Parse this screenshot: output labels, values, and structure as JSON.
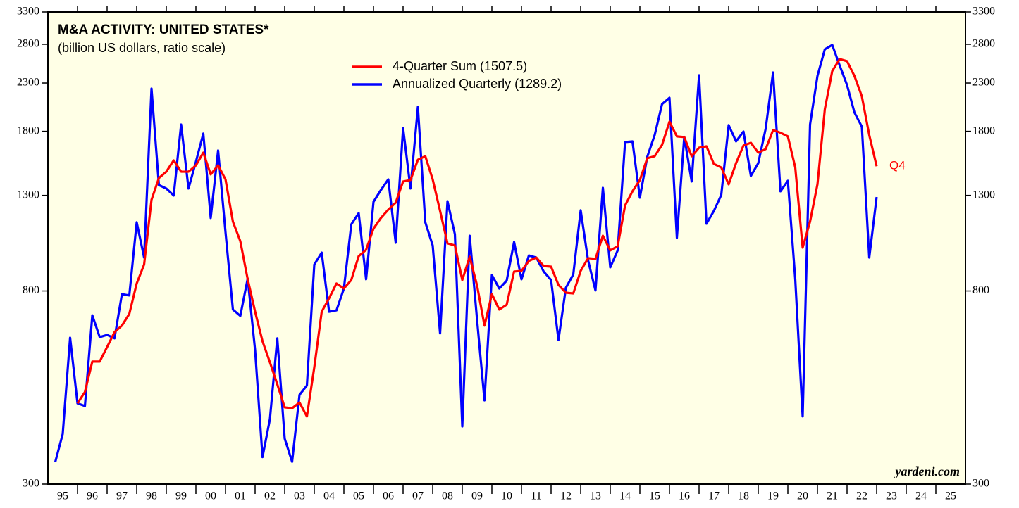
{
  "chart_data": {
    "type": "line",
    "title": "M&A ACTIVITY: UNITED STATES*",
    "subtitle": "(billion US dollars, ratio scale)",
    "annotations": {
      "end_label": "Q4",
      "source": "yardeni.com"
    },
    "log_scale": true,
    "legend": "top",
    "x": [
      1995.25,
      1995.5,
      1995.75,
      1996,
      1996.25,
      1996.5,
      1996.75,
      1997,
      1997.25,
      1997.5,
      1997.75,
      1998,
      1998.25,
      1998.5,
      1998.75,
      1999,
      1999.25,
      1999.5,
      1999.75,
      2000,
      2000.25,
      2000.5,
      2000.75,
      2001,
      2001.25,
      2001.5,
      2001.75,
      2002,
      2002.25,
      2002.5,
      2002.75,
      2003,
      2003.25,
      2003.5,
      2003.75,
      2004,
      2004.25,
      2004.5,
      2004.75,
      2005,
      2005.25,
      2005.5,
      2005.75,
      2006,
      2006.25,
      2006.5,
      2006.75,
      2007,
      2007.25,
      2007.5,
      2007.75,
      2008,
      2008.25,
      2008.5,
      2008.75,
      2009,
      2009.25,
      2009.5,
      2009.75,
      2010,
      2010.25,
      2010.5,
      2010.75,
      2011,
      2011.25,
      2011.5,
      2011.75,
      2012,
      2012.25,
      2012.5,
      2012.75,
      2013,
      2013.25,
      2013.5,
      2013.75,
      2014,
      2014.25,
      2014.5,
      2014.75,
      2015,
      2015.25,
      2015.5,
      2015.75,
      2016,
      2016.25,
      2016.5,
      2016.75,
      2017,
      2017.25,
      2017.5,
      2017.75,
      2018,
      2018.25,
      2018.5,
      2018.75,
      2019,
      2019.25,
      2019.5,
      2019.75,
      2020,
      2020.25,
      2020.5,
      2020.75,
      2021,
      2021.25,
      2021.5,
      2021.75,
      2022,
      2022.25,
      2022.5,
      2022.75,
      2023
    ],
    "series": [
      {
        "name": "4-Quarter Sum (1507.5)",
        "color": "#ff0000",
        "values": [
          null,
          null,
          null,
          452,
          479,
          559,
          559,
          602,
          649,
          671,
          712,
          831,
          915,
          1271,
          1420,
          1466,
          1553,
          1466,
          1466,
          1514,
          1615,
          1446,
          1514,
          1410,
          1138,
          1030,
          849,
          720,
          620,
          557,
          498,
          443,
          441,
          454,
          423,
          543,
          720,
          771,
          831,
          810,
          846,
          955,
          986,
          1098,
          1159,
          1209,
          1253,
          1395,
          1405,
          1558,
          1586,
          1410,
          1201,
          1019,
          1008,
          846,
          952,
          822,
          671,
          787,
          728,
          746,
          883,
          886,
          932,
          948,
          908,
          905,
          825,
          793,
          790,
          886,
          945,
          942,
          1059,
          983,
          1004,
          1235,
          1327,
          1405,
          1570,
          1586,
          1680,
          1890,
          1754,
          1748,
          1586,
          1656,
          1668,
          1525,
          1498,
          1375,
          1531,
          1674,
          1698,
          1615,
          1644,
          1811,
          1787,
          1754,
          1498,
          997,
          1138,
          1375,
          2016,
          2445,
          2598,
          2570,
          2384,
          2150,
          1766,
          1507.5
        ]
      },
      {
        "name": "Annualized Quarterly (1289.2)",
        "color": "#0000ff",
        "values": [
          336,
          387,
          631,
          452,
          446,
          707,
          633,
          640,
          629,
          787,
          782,
          1134,
          948,
          2236,
          1370,
          1346,
          1299,
          1863,
          1346,
          1542,
          1779,
          1159,
          1633,
          1078,
          728,
          705,
          852,
          592,
          344,
          417,
          629,
          378,
          336,
          472,
          495,
          915,
          972,
          720,
          725,
          810,
          1122,
          1188,
          849,
          1258,
          1336,
          1410,
          1022,
          1830,
          1346,
          2037,
          1134,
          1008,
          645,
          1262,
          1067,
          402,
          1059,
          690,
          459,
          867,
          810,
          843,
          1026,
          849,
          958,
          948,
          883,
          846,
          624,
          813,
          870,
          1205,
          935,
          802,
          1351,
          902,
          983,
          1704,
          1710,
          1285,
          1581,
          1766,
          2067,
          2134,
          1048,
          1750,
          1395,
          2393,
          1126,
          1201,
          1303,
          1857,
          1710,
          1798,
          1435,
          1531,
          1824,
          2427,
          1327,
          1400,
          849,
          423,
          1863,
          2384,
          2731,
          2791,
          2516,
          2276,
          1980,
          1843,
          948,
          1289.2
        ]
      }
    ],
    "xlim": [
      1995,
      2026
    ],
    "xticks": [
      {
        "value": 1995.5,
        "label": "95"
      },
      {
        "value": 1996.5,
        "label": "96"
      },
      {
        "value": 1997.5,
        "label": "97"
      },
      {
        "value": 1998.5,
        "label": "98"
      },
      {
        "value": 1999.5,
        "label": "99"
      },
      {
        "value": 2000.5,
        "label": "00"
      },
      {
        "value": 2001.5,
        "label": "01"
      },
      {
        "value": 2002.5,
        "label": "02"
      },
      {
        "value": 2003.5,
        "label": "03"
      },
      {
        "value": 2004.5,
        "label": "04"
      },
      {
        "value": 2005.5,
        "label": "05"
      },
      {
        "value": 2006.5,
        "label": "06"
      },
      {
        "value": 2007.5,
        "label": "07"
      },
      {
        "value": 2008.5,
        "label": "08"
      },
      {
        "value": 2009.5,
        "label": "09"
      },
      {
        "value": 2010.5,
        "label": "10"
      },
      {
        "value": 2011.5,
        "label": "11"
      },
      {
        "value": 2012.5,
        "label": "12"
      },
      {
        "value": 2013.5,
        "label": "13"
      },
      {
        "value": 2014.5,
        "label": "14"
      },
      {
        "value": 2015.5,
        "label": "15"
      },
      {
        "value": 2016.5,
        "label": "16"
      },
      {
        "value": 2017.5,
        "label": "17"
      },
      {
        "value": 2018.5,
        "label": "18"
      },
      {
        "value": 2019.5,
        "label": "19"
      },
      {
        "value": 2020.5,
        "label": "20"
      },
      {
        "value": 2021.5,
        "label": "21"
      },
      {
        "value": 2022.5,
        "label": "22"
      },
      {
        "value": 2023.5,
        "label": "23"
      },
      {
        "value": 2024.5,
        "label": "24"
      },
      {
        "value": 2025.5,
        "label": "25"
      }
    ],
    "ylim": [
      300,
      3300
    ],
    "yticks": [
      300,
      800,
      1300,
      1800,
      2300,
      2800,
      3300
    ],
    "background": "#ffffe6"
  }
}
